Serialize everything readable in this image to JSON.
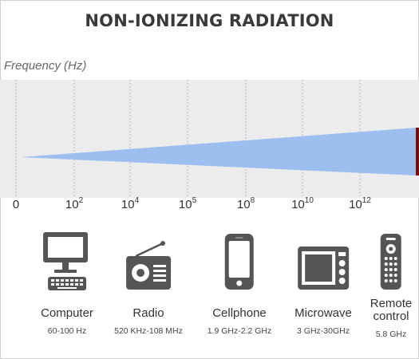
{
  "title": "NON-IONIZING RADIATION",
  "axis_title": "Frequency (Hz)",
  "ticks": [
    {
      "base": "0",
      "exp": ""
    },
    {
      "base": "10",
      "exp": "2"
    },
    {
      "base": "10",
      "exp": "4"
    },
    {
      "base": "10",
      "exp": "5"
    },
    {
      "base": "10",
      "exp": "8"
    },
    {
      "base": "10",
      "exp": "10"
    },
    {
      "base": "10",
      "exp": "12"
    }
  ],
  "wedge_color": "#9dbff0",
  "edge_color": "#7a0b0b",
  "devices": [
    {
      "name": "Computer",
      "range": "60-100 Hz",
      "icon": "computer-icon"
    },
    {
      "name": "Radio",
      "range": "520 KHz-108 MHz",
      "icon": "radio-icon"
    },
    {
      "name": "Cellphone",
      "range": "1.9 GHz-2.2 GHz",
      "icon": "cellphone-icon"
    },
    {
      "name": "Microwave",
      "range": "3 GHz-30GHz",
      "icon": "microwave-icon"
    },
    {
      "name": "Remote control",
      "name_line1": "Remote",
      "name_line2": "control",
      "range": "5.8 GHz",
      "icon": "remote-control-icon"
    }
  ]
}
